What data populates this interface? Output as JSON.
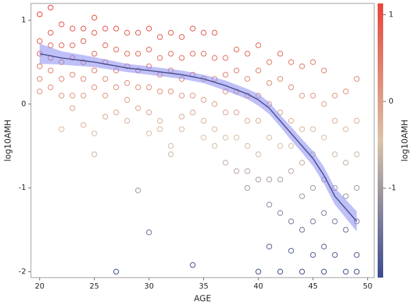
{
  "chart_data": {
    "type": "scatter",
    "x_label": "AGE",
    "y_label": "log10AMH",
    "colorbar_label": "log10AMH",
    "xlim": [
      19.2,
      50.6
    ],
    "ylim": [
      -2.07,
      1.2
    ],
    "xticks": [
      20,
      25,
      30,
      35,
      40,
      45,
      50
    ],
    "yticks": [
      -2,
      -1,
      0,
      1
    ],
    "clim": [
      -2.03,
      1.13
    ],
    "cticks": [
      -1,
      0,
      1
    ],
    "colormap": [
      "#3a4b8f",
      "#d9c3a8",
      "#e8453a"
    ],
    "x": [
      20,
      20,
      20,
      20,
      20,
      20,
      21,
      21,
      21,
      21,
      21,
      21,
      22,
      22,
      22,
      22,
      22,
      22,
      23,
      23,
      23,
      23,
      23,
      23,
      24,
      24,
      24,
      24,
      24,
      24,
      25,
      25,
      25,
      25,
      25,
      25,
      25,
      26,
      26,
      26,
      26,
      26,
      26,
      27,
      27,
      27,
      27,
      27,
      27,
      28,
      28,
      28,
      28,
      28,
      28,
      29,
      29,
      29,
      29,
      29,
      29,
      30,
      30,
      30,
      30,
      30,
      30,
      30,
      31,
      31,
      31,
      31,
      31,
      31,
      32,
      32,
      32,
      32,
      32,
      32,
      33,
      33,
      33,
      33,
      33,
      33,
      34,
      34,
      34,
      34,
      34,
      34,
      35,
      35,
      35,
      35,
      35,
      35,
      36,
      36,
      36,
      36,
      36,
      36,
      37,
      37,
      37,
      37,
      37,
      37,
      38,
      38,
      38,
      38,
      38,
      38,
      39,
      39,
      39,
      39,
      39,
      39,
      39,
      40,
      40,
      40,
      40,
      40,
      40,
      40,
      41,
      41,
      41,
      41,
      41,
      41,
      41,
      42,
      42,
      42,
      42,
      42,
      42,
      42,
      43,
      43,
      43,
      43,
      43,
      43,
      43,
      44,
      44,
      44,
      44,
      44,
      44,
      44,
      45,
      45,
      45,
      45,
      45,
      45,
      45,
      46,
      46,
      46,
      46,
      46,
      46,
      46,
      47,
      47,
      47,
      47,
      47,
      47,
      48,
      48,
      48,
      48,
      48,
      48,
      49,
      49,
      49,
      49,
      49,
      49,
      49
    ],
    "values": [
      1.07,
      0.75,
      0.6,
      0.45,
      0.3,
      0.15,
      1.15,
      0.85,
      0.7,
      0.55,
      0.4,
      0.2,
      0.95,
      0.7,
      0.5,
      0.3,
      0.1,
      -0.3,
      0.9,
      0.7,
      0.55,
      0.35,
      0.1,
      -0.05,
      0.9,
      0.75,
      0.5,
      0.3,
      0.1,
      -0.25,
      1.03,
      0.85,
      0.6,
      0.4,
      0.2,
      -0.35,
      -0.6,
      0.9,
      0.7,
      0.5,
      0.3,
      0.1,
      -0.15,
      0.9,
      0.65,
      0.4,
      0.2,
      -0.1,
      -2.0,
      0.85,
      0.6,
      0.45,
      0.25,
      0.05,
      -0.2,
      0.85,
      0.6,
      0.4,
      0.2,
      -0.05,
      -1.03,
      0.9,
      0.65,
      0.45,
      0.2,
      -0.1,
      -0.35,
      -1.53,
      0.8,
      0.55,
      0.35,
      0.15,
      -0.2,
      -0.3,
      0.85,
      0.6,
      0.4,
      0.15,
      -0.5,
      -0.6,
      0.8,
      0.55,
      0.3,
      0.1,
      -0.15,
      -0.3,
      0.9,
      0.6,
      0.35,
      0.1,
      -0.1,
      -1.92,
      0.85,
      0.6,
      0.3,
      0.05,
      -0.2,
      -0.4,
      0.85,
      0.55,
      0.3,
      0.0,
      -0.3,
      -0.5,
      0.55,
      0.35,
      0.15,
      -0.1,
      -0.4,
      -0.7,
      0.65,
      0.4,
      0.15,
      -0.1,
      -0.4,
      -0.8,
      0.6,
      0.3,
      0.1,
      -0.2,
      -0.5,
      -0.8,
      -1.0,
      0.7,
      0.4,
      0.1,
      -0.2,
      -0.6,
      -0.9,
      -2.0,
      0.5,
      0.25,
      0.0,
      -0.4,
      -0.9,
      -1.2,
      -1.7,
      0.6,
      0.3,
      -0.1,
      -0.5,
      -0.9,
      -1.3,
      -2.0,
      0.5,
      0.2,
      -0.2,
      -0.5,
      -0.8,
      -1.4,
      -1.75,
      0.45,
      0.1,
      -0.3,
      -0.7,
      -1.1,
      -1.5,
      -2.0,
      0.5,
      0.1,
      -0.3,
      -0.6,
      -1.0,
      -1.4,
      -1.8,
      0.4,
      0.0,
      -0.4,
      -0.9,
      -1.3,
      -1.7,
      -2.0,
      0.1,
      -0.2,
      -0.6,
      -1.0,
      -1.4,
      -1.8,
      0.15,
      -0.3,
      -0.7,
      -1.1,
      -1.5,
      -2.0,
      0.3,
      -0.2,
      -0.6,
      -1.0,
      -1.4,
      -1.8,
      -2.0
    ],
    "trend": {
      "color": "#4a4f8f",
      "band_color": "#8a8cf0",
      "x": [
        20,
        22,
        25,
        28,
        30,
        33,
        35,
        37,
        39,
        40,
        41,
        42,
        43,
        44,
        45,
        46,
        47,
        48,
        49
      ],
      "values": [
        0.6,
        0.55,
        0.5,
        0.43,
        0.4,
        0.35,
        0.3,
        0.22,
        0.12,
        0.05,
        -0.05,
        -0.2,
        -0.35,
        -0.5,
        -0.65,
        -0.85,
        -1.1,
        -1.25,
        -1.4
      ],
      "lower": [
        0.48,
        0.47,
        0.44,
        0.38,
        0.35,
        0.3,
        0.25,
        0.16,
        0.06,
        -0.02,
        -0.12,
        -0.27,
        -0.43,
        -0.58,
        -0.74,
        -0.95,
        -1.2,
        -1.36,
        -1.52
      ],
      "upper": [
        0.72,
        0.63,
        0.56,
        0.48,
        0.45,
        0.4,
        0.35,
        0.28,
        0.18,
        0.12,
        0.02,
        -0.13,
        -0.27,
        -0.42,
        -0.56,
        -0.75,
        -1.0,
        -1.14,
        -1.28
      ]
    }
  }
}
